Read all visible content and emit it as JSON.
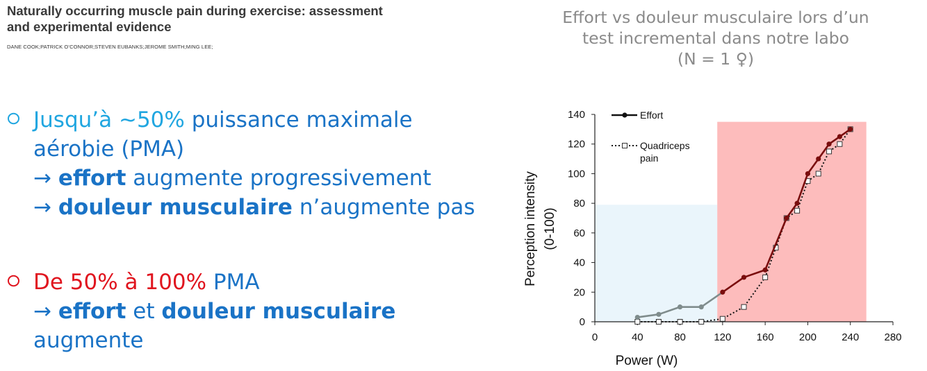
{
  "paper": {
    "title_line1": "Naturally occurring muscle pain during exercise: assessment",
    "title_line2": "and experimental evidence",
    "authors": "DANE COOK;PATRICK O’CONNOR;STEVEN EUBANKS;JEROME SMITH;MING LEE;"
  },
  "bullets": [
    {
      "marker": "o",
      "lead": "Jusqu’à ~50%",
      "line1_rest": " puissance maximale",
      "line2": "aérobie (PMA)",
      "line3_arrow": "→ ",
      "line3_bold": "effort",
      "line3_rest": " augmente progressivement",
      "line4_arrow": "→ ",
      "line4_bold": "douleur musculaire",
      "line4_rest": " n’augmente pas"
    },
    {
      "marker": "o",
      "lead": "De 50% à 100%",
      "line1_rest": " PMA",
      "line2_arrow": "→ ",
      "line2_bold1": "effort",
      "line2_mid": " et ",
      "line2_bold2": "douleur musculaire",
      "line3": "augmente"
    }
  ],
  "chart_title": {
    "line1": "Effort vs douleur musculaire lors d’un",
    "line2": "test incremental dans notre labo",
    "line3": "(N = 1 ♀)"
  },
  "chart_data": {
    "type": "line",
    "xlabel": "Power (W)",
    "ylabel": "Perception intensity (0-100)",
    "ylabel_line1": "Perception intensity",
    "ylabel_line2": "(0-100)",
    "xlim": [
      0,
      280
    ],
    "ylim": [
      0,
      140
    ],
    "xticks": [
      0,
      40,
      80,
      120,
      160,
      200,
      240,
      280
    ],
    "yticks": [
      0,
      20,
      40,
      60,
      80,
      100,
      120,
      140
    ],
    "grid": false,
    "legend_position": "top-left",
    "regions": [
      {
        "x_from": 0,
        "x_to": 115,
        "y_to": 79,
        "color": "#eaf5fb"
      },
      {
        "x_from": 115,
        "x_to": 255,
        "y_to": 135,
        "color": "#fdbcbc"
      }
    ],
    "series": [
      {
        "name": "Effort",
        "style": "solid",
        "marker": "filled-circle",
        "x": [
          40,
          60,
          80,
          100,
          120,
          140,
          160,
          180,
          190,
          200,
          210,
          220,
          230,
          240
        ],
        "y": [
          3,
          5,
          10,
          10,
          20,
          30,
          35,
          70,
          80,
          100,
          110,
          120,
          125,
          130
        ],
        "color_low": "#7f8c8c",
        "color_high": "#7a0d0d"
      },
      {
        "name_line1": "Quadriceps",
        "name_line2": "pain",
        "style": "dotted",
        "marker": "open-square",
        "x": [
          40,
          60,
          80,
          100,
          120,
          140,
          160,
          170,
          180,
          190,
          200,
          210,
          220,
          230,
          240
        ],
        "y": [
          0,
          0,
          0,
          0,
          2,
          10,
          30,
          50,
          70,
          75,
          95,
          100,
          115,
          120,
          130
        ],
        "color": "#111111"
      }
    ]
  }
}
